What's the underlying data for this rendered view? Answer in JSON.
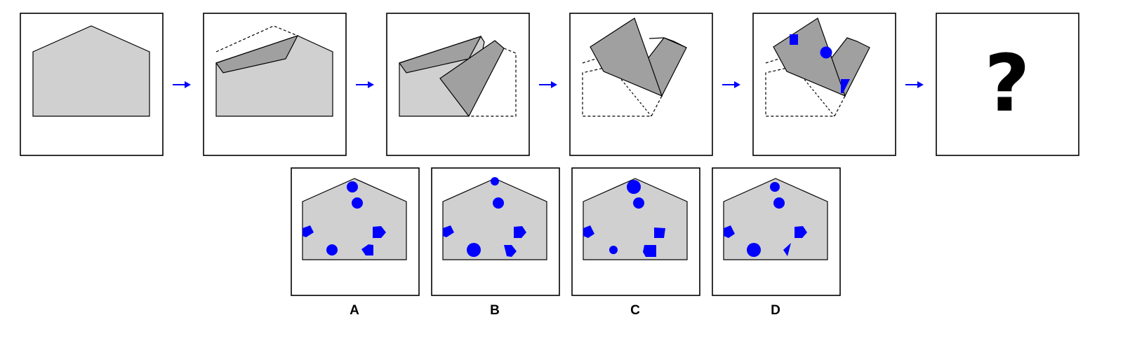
{
  "question_mark": "?",
  "options": [
    {
      "label": "A"
    },
    {
      "label": "B"
    },
    {
      "label": "C"
    },
    {
      "label": "D"
    }
  ],
  "colors": {
    "paper_light": "#d0d0d0",
    "paper_folded": "#a0a0a0",
    "punch_holes": "#0000ff",
    "arrow": "#0000ff",
    "frame_border": "#000000"
  },
  "icons": {
    "arrow": "right-arrow-icon",
    "question": "question-mark"
  }
}
